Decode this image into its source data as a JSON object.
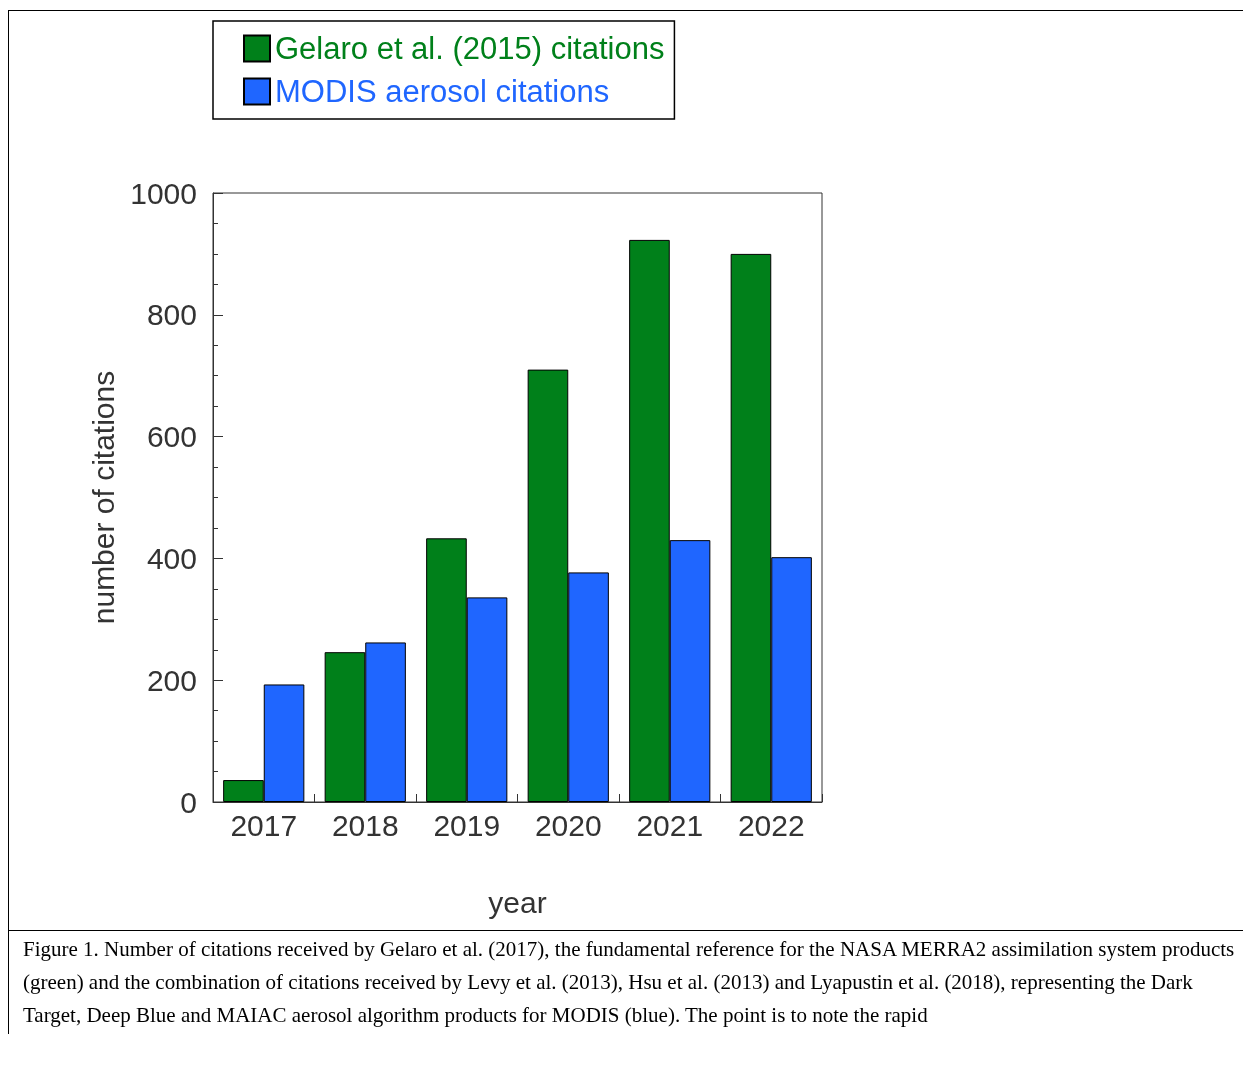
{
  "chart_data": {
    "type": "bar",
    "xlabel": "year",
    "ylabel": "number of citations",
    "categories": [
      "2017",
      "2018",
      "2019",
      "2020",
      "2021",
      "2022"
    ],
    "series": [
      {
        "name": "Gelaro et al. (2015) citations",
        "color": "#00801a",
        "values": [
          36,
          246,
          433,
          710,
          923,
          900
        ]
      },
      {
        "name": "MODIS aerosol citations",
        "color": "#1f66ff",
        "values": [
          193,
          262,
          336,
          377,
          430,
          402
        ]
      }
    ],
    "ylim": [
      0,
      1000
    ],
    "yticks": [
      0,
      200,
      400,
      600,
      800,
      1000
    ],
    "grid": false,
    "legend": "top left",
    "annotations": [
      "Figure 1. Number of citations received by Gelaro et al. (2017), the fundamental reference for the NASA MERRA2 assimilation system products (green) and the combination of citations received by Levy et al. (2013), Hsu et al. (2013)  and Lyapustin et al. (2018), representing the Dark Target,  Deep Blue and MAIAC aerosol algorithm products for MODIS (blue). The point is to note the rapid"
    ]
  }
}
